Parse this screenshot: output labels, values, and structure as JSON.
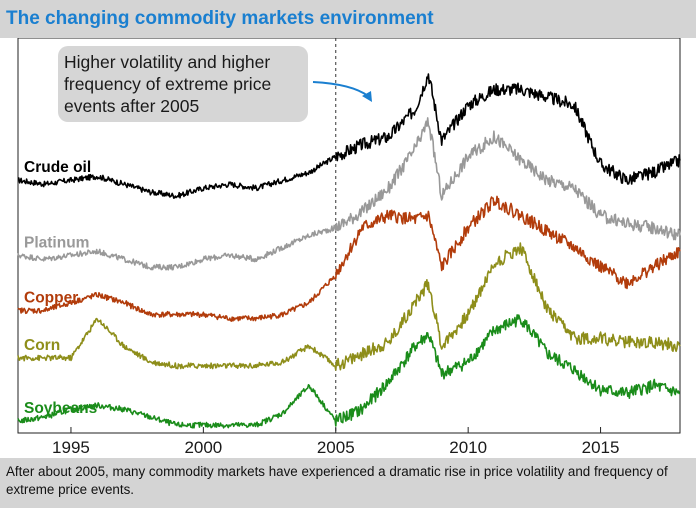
{
  "title": "The changing commodity markets environment",
  "caption": "After about 2005, many commodity markets have experienced a dramatic rise in price volatility and frequency of extreme price events.",
  "annotation": {
    "lines": [
      "Higher volatility and higher",
      "frequency of extreme price",
      "events after 2005"
    ],
    "arrow_color": "#1a7fd0"
  },
  "colors": {
    "title": "#1a7fd0",
    "bars": "#d4d4d4",
    "crude_oil": "#000000",
    "platinum": "#999999",
    "copper": "#b23c0b",
    "corn": "#8e8e1a",
    "soybeans": "#1a8c1a"
  },
  "chart_data": {
    "type": "line",
    "title": "The changing commodity markets environment",
    "xlabel": "",
    "ylabel": "",
    "xlim": [
      1993,
      2018
    ],
    "ylim": [
      0,
      100
    ],
    "y_unit": "relative price index, each series vertically offset (no y-axis shown)",
    "x_ticks": [
      1995,
      2000,
      2005,
      2010,
      2015
    ],
    "reference_line": {
      "x": 2005,
      "style": "dashed"
    },
    "x": [
      1993,
      1994,
      1995,
      1996,
      1997,
      1998,
      1999,
      2000,
      2001,
      2002,
      2003,
      2004,
      2005,
      2006,
      2007,
      2008,
      2008.5,
      2009,
      2010,
      2011,
      2012,
      2013,
      2014,
      2015,
      2016,
      2017,
      2018
    ],
    "series": [
      {
        "name": "Crude oil",
        "key": "crude_oil",
        "values": [
          64,
          63,
          64,
          65,
          63,
          61,
          60,
          62,
          63,
          62,
          64,
          66,
          70,
          73,
          75,
          82,
          91,
          74,
          83,
          87,
          87,
          85,
          83,
          68,
          64,
          66,
          69
        ]
      },
      {
        "name": "Platinum",
        "key": "platinum",
        "values": [
          45,
          44,
          45,
          46,
          44,
          42,
          42,
          44,
          45,
          44,
          47,
          50,
          52,
          56,
          62,
          72,
          79,
          60,
          70,
          75,
          69,
          64,
          62,
          55,
          53,
          52,
          50
        ]
      },
      {
        "name": "Copper",
        "key": "copper",
        "values": [
          31,
          31,
          33,
          35,
          33,
          30,
          30,
          30,
          29,
          29,
          30,
          33,
          40,
          52,
          55,
          54,
          55,
          42,
          52,
          59,
          55,
          51,
          47,
          42,
          38,
          42,
          46
        ]
      },
      {
        "name": "Corn",
        "key": "corn",
        "values": [
          19,
          19,
          19,
          29,
          22,
          18,
          17,
          17,
          17,
          17,
          18,
          22,
          17,
          20,
          23,
          33,
          38,
          22,
          30,
          43,
          47,
          31,
          24,
          24,
          23,
          23,
          22
        ]
      },
      {
        "name": "Soybeans",
        "key": "soybeans",
        "values": [
          3,
          4,
          6,
          7,
          6,
          4,
          2,
          2,
          2,
          2,
          5,
          12,
          3,
          6,
          13,
          22,
          25,
          15,
          18,
          26,
          29,
          20,
          16,
          11,
          10,
          12,
          10
        ]
      }
    ]
  }
}
